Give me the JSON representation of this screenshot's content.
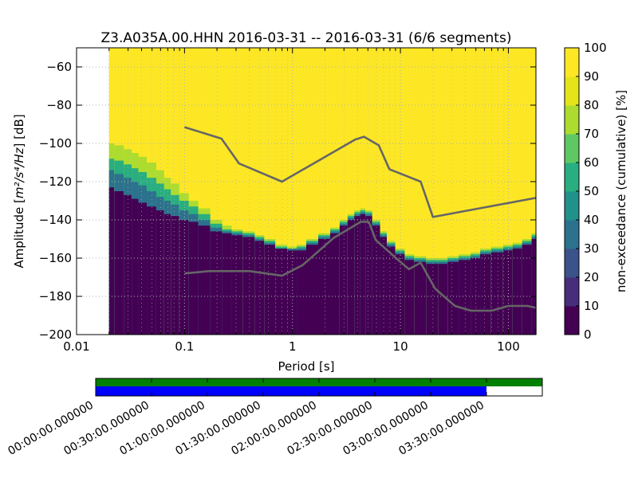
{
  "chart_data": {
    "type": "heatmap",
    "title": "Z3.A035A.00.HHN   2016-03-31 -- 2016-03-31  (6/6 segments)",
    "xlabel": "Period [s]",
    "ylabel_plain": "Amplitude [",
    "ylabel_math": "m²/s⁴/Hz",
    "ylabel_unit": "] [dB]",
    "x_scale": "log",
    "xlim": [
      0.01,
      180
    ],
    "ylim": [
      -200,
      -50
    ],
    "x_ticks": [
      {
        "value": 0.01,
        "label": "0.01"
      },
      {
        "value": 0.1,
        "label": "0.1"
      },
      {
        "value": 1,
        "label": "1"
      },
      {
        "value": 10,
        "label": "10"
      },
      {
        "value": 100,
        "label": "100"
      }
    ],
    "y_ticks": [
      {
        "value": -60,
        "label": "−60"
      },
      {
        "value": -80,
        "label": "−80"
      },
      {
        "value": -100,
        "label": "−100"
      },
      {
        "value": -120,
        "label": "−120"
      },
      {
        "value": -140,
        "label": "−140"
      },
      {
        "value": -160,
        "label": "−160"
      },
      {
        "value": -180,
        "label": "−180"
      },
      {
        "value": -200,
        "label": "−200"
      }
    ],
    "grid": true,
    "data_x_start": 0.02,
    "period_columns": [
      0.02,
      0.025,
      0.03,
      0.035,
      0.04,
      0.05,
      0.06,
      0.07,
      0.08,
      0.1,
      0.12,
      0.15,
      0.2,
      0.25,
      0.3,
      0.4,
      0.5,
      0.6,
      0.8,
      1.0,
      1.2,
      1.5,
      2.0,
      2.5,
      3.0,
      3.5,
      4.0,
      4.5,
      5.0,
      6.0,
      7.0,
      8.0,
      10.0,
      12.0,
      15.0,
      20.0,
      25.0,
      30.0,
      40.0,
      50.0,
      60.0,
      80.0,
      100.0,
      120.0,
      150.0,
      180.0
    ],
    "percentile_bands": {
      "upper_100": [
        -100,
        -101,
        -103,
        -105,
        -107,
        -110,
        -114,
        -118,
        -121,
        -126,
        -130,
        -134,
        -140,
        -143,
        -145,
        -146,
        -148,
        -150,
        -153,
        -154,
        -153,
        -150,
        -147,
        -144,
        -140,
        -137,
        -135,
        -134,
        -135,
        -140,
        -146,
        -151,
        -155,
        -158,
        -159,
        -160,
        -160,
        -159,
        -158,
        -157,
        -155,
        -154,
        -153,
        -152,
        -150,
        -147
      ],
      "level_90": [
        -108,
        -109,
        -111,
        -113,
        -115,
        -118,
        -121,
        -124,
        -127,
        -130,
        -133,
        -137,
        -142,
        -145,
        -146,
        -147,
        -149,
        -151,
        -154,
        -155,
        -154,
        -151,
        -148,
        -145,
        -141,
        -138,
        -136,
        -135,
        -136,
        -141,
        -147,
        -152,
        -156,
        -159,
        -160,
        -161,
        -161,
        -160,
        -159,
        -158,
        -156,
        -155,
        -154,
        -153,
        -151,
        -148
      ],
      "level_50": [
        -114,
        -116,
        -118,
        -120,
        -122,
        -125,
        -128,
        -130,
        -132,
        -135,
        -137,
        -140,
        -144,
        -146,
        -147,
        -148,
        -150,
        -152,
        -155,
        -155,
        -155,
        -152,
        -149,
        -146,
        -142,
        -139,
        -137,
        -136,
        -137,
        -142,
        -148,
        -153,
        -157,
        -160,
        -161,
        -162,
        -162,
        -161,
        -160,
        -159,
        -157,
        -156,
        -155,
        -154,
        -152,
        -149
      ],
      "level_5": [
        -123,
        -125,
        -127,
        -129,
        -131,
        -133,
        -135,
        -137,
        -138,
        -140,
        -141,
        -143,
        -146,
        -147,
        -148,
        -149,
        -151,
        -153,
        -155,
        -156,
        -156,
        -153,
        -150,
        -147,
        -143,
        -140,
        -138,
        -137,
        -138,
        -143,
        -149,
        -154,
        -158,
        -161,
        -162,
        -163,
        -163,
        -162,
        -161,
        -160,
        -158,
        -157,
        -156,
        -155,
        -153,
        -150
      ]
    },
    "reference_models": [
      {
        "points": [
          [
            0.1,
            -91.5
          ],
          [
            0.22,
            -97.5
          ],
          [
            0.32,
            -110.5
          ],
          [
            0.8,
            -120
          ],
          [
            3.8,
            -98
          ],
          [
            4.6,
            -96.5
          ],
          [
            6.3,
            -101
          ],
          [
            7.9,
            -113.5
          ],
          [
            15.4,
            -120
          ],
          [
            20,
            -138.5
          ],
          [
            180,
            -128.5
          ]
        ]
      },
      {
        "points": [
          [
            0.1,
            -168
          ],
          [
            0.17,
            -166.8
          ],
          [
            0.4,
            -166.8
          ],
          [
            0.8,
            -169.2
          ],
          [
            1.24,
            -163.7
          ],
          [
            2.4,
            -149.5
          ],
          [
            4.3,
            -141
          ],
          [
            5.1,
            -141
          ],
          [
            5.9,
            -150.5
          ],
          [
            10,
            -162
          ],
          [
            12,
            -165.8
          ],
          [
            15.4,
            -162.4
          ],
          [
            21,
            -176
          ],
          [
            32,
            -185
          ],
          [
            45,
            -187.5
          ],
          [
            70,
            -187.5
          ],
          [
            100,
            -185
          ],
          [
            150,
            -185
          ],
          [
            180,
            -186
          ]
        ]
      }
    ],
    "colorbar": {
      "label": "non-exceedance (cumulative) [%]",
      "range": [
        0,
        100
      ],
      "ticks": [
        "0",
        "10",
        "20",
        "30",
        "40",
        "50",
        "60",
        "70",
        "80",
        "90",
        "100"
      ],
      "colors": [
        "#440154",
        "#472d7b",
        "#3b528b",
        "#2c728e",
        "#21918c",
        "#28ae80",
        "#5ec962",
        "#addc30",
        "#e4e419",
        "#fde725"
      ]
    },
    "timeline": {
      "segments": 6,
      "coverage_fraction_data": 0.875,
      "coverage_fraction_processed": 1.0,
      "colors": {
        "data": "#0000ff",
        "processed": "#008000",
        "gap": "#ffffff"
      },
      "labels": [
        "00:00:00.000000",
        "00:30:00.000000",
        "01:00:00.000000",
        "01:30:00.000000",
        "02:00:00.000000",
        "02:30:00.000000",
        "03:00:00.000000",
        "03:30:00.000000"
      ]
    },
    "colors": {
      "model_line": "#666666",
      "grid": "#b0b0b0"
    }
  }
}
